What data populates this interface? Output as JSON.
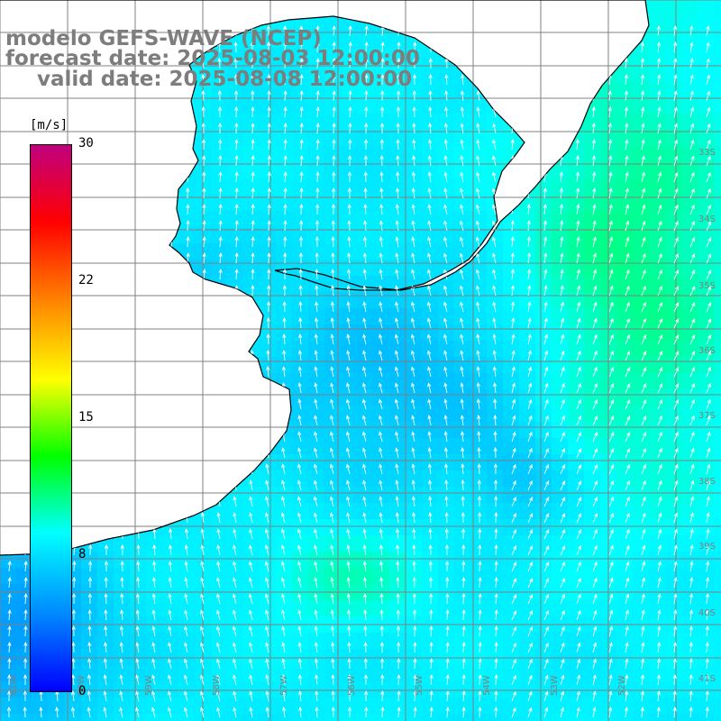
{
  "header": {
    "model": "modelo GEFS-WAVE (NCEP)",
    "forecast": "forecast date: 2025-08-03 12:00:00",
    "valid": "valid date: 2025-08-08 12:00:00"
  },
  "colorbar": {
    "unit": "[m/s]",
    "min": 0,
    "max": 30,
    "ticks": [
      "30",
      "22",
      "15",
      "8",
      "0"
    ],
    "tick_values": [
      30,
      22,
      15,
      8,
      0
    ],
    "gradient_stops": [
      "#0000ff",
      "#0088ff",
      "#00ffff",
      "#00ff00",
      "#ffff00",
      "#ff8800",
      "#ff0000",
      "#c0007f"
    ]
  },
  "map": {
    "lat_labels": [
      "33S",
      "34S",
      "35S",
      "36S",
      "37S",
      "38S",
      "39S",
      "40S",
      "41S"
    ],
    "lon_labels": [
      "61W",
      "60W",
      "59W",
      "58W",
      "57W",
      "56W",
      "55W",
      "54W",
      "53W",
      "52W"
    ],
    "land_color": "#ffffff",
    "grid_color": "#808080",
    "coast_color": "#000000",
    "arrow_color": "#ffffff",
    "wind_direction": "from SSE toward NNW"
  }
}
